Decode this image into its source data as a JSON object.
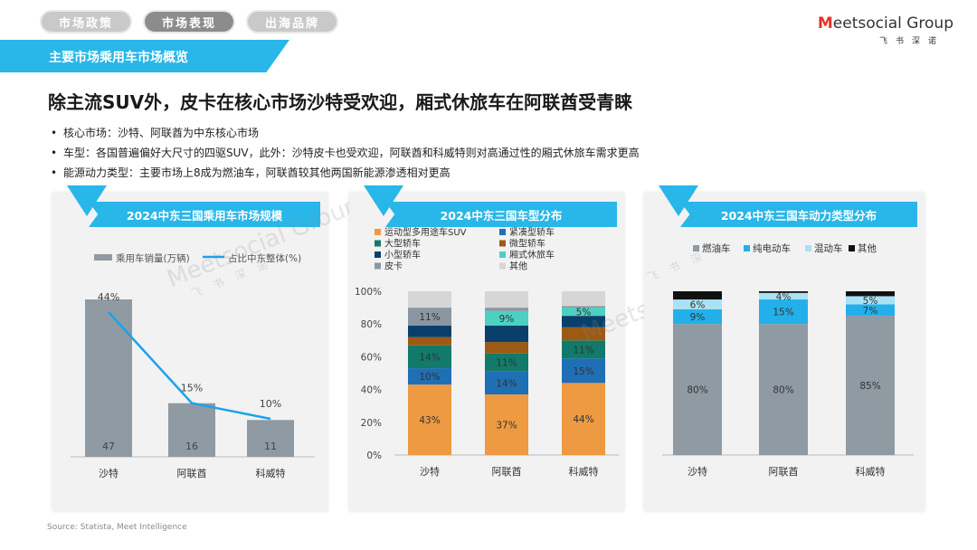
{
  "tabs": [
    {
      "label": "市场政策",
      "active": false
    },
    {
      "label": "市场表现",
      "active": true
    },
    {
      "label": "出海品牌",
      "active": false
    }
  ],
  "logo": {
    "main_m": "M",
    "main_rest": "eetsocial Group",
    "sub": "飞书深诺"
  },
  "section": {
    "title": "主要市场乘用车市场概览"
  },
  "headline": "除主流SUV外，皮卡在核心市场沙特受欢迎，厢式休旅车在阿联酋受青睐",
  "bullets": [
    "核心市场：沙特、阿联酋为中东核心市场",
    "车型：各国普遍偏好大尺寸的四驱SUV，此外：沙特皮卡也受欢迎，阿联酋和科威特则对高通过性的厢式休旅车需求更高",
    "能源动力类型：主要市场上8成为燃油车，阿联酋较其他两国新能源渗透相对更高"
  ],
  "source": "Source: Statista, Meet Intelligence",
  "watermark": {
    "text": "Meetsocial Group",
    "sub": "飞书深诺"
  },
  "colors": {
    "accent": "#29b6e8",
    "bar_gray": "#8f9aa3",
    "line_blue": "#1aa3e8",
    "suv": "#ed9a43",
    "compact": "#1f6fb5",
    "large": "#127a6a",
    "micro": "#9c5a15",
    "small": "#0b3f6b",
    "mpv": "#4cd0c2",
    "pickup": "#8a97a2",
    "other": "#d6d6d6",
    "fuel": "#8f9aa3",
    "ev": "#23b0ea",
    "hybrid": "#a9e2f5",
    "other_power": "#111111"
  },
  "chart_data": [
    {
      "type": "bar",
      "title": "2024中东三国乘用车市场规模",
      "categories": [
        "沙特",
        "阿联酋",
        "科威特"
      ],
      "series": [
        {
          "name": "乘用车销量(万辆)",
          "type": "bar",
          "values": [
            47,
            16,
            11
          ],
          "labels": [
            "47",
            "16",
            "11"
          ]
        },
        {
          "name": "占比中东整体(%)",
          "type": "line",
          "values": [
            44,
            15,
            10
          ],
          "labels": [
            "44%",
            "15%",
            "10%"
          ]
        }
      ]
    },
    {
      "type": "bar",
      "stacked": true,
      "title": "2024中东三国车型分布",
      "categories": [
        "沙特",
        "阿联酋",
        "科威特"
      ],
      "y_ticks": [
        "0%",
        "20%",
        "40%",
        "60%",
        "80%",
        "100%"
      ],
      "ylim": [
        0,
        100
      ],
      "series": [
        {
          "name": "运动型多用途车SUV",
          "color_key": "suv",
          "values": [
            43,
            37,
            44
          ],
          "labels": [
            "43%",
            "37%",
            "44%"
          ]
        },
        {
          "name": "紧凑型轿车",
          "color_key": "compact",
          "values": [
            10,
            14,
            15
          ],
          "labels": [
            "10%",
            "14%",
            "15%"
          ]
        },
        {
          "name": "大型轿车",
          "color_key": "large",
          "values": [
            14,
            11,
            11
          ],
          "labels": [
            "14%",
            "11%",
            "11%"
          ]
        },
        {
          "name": "微型轿车",
          "color_key": "micro",
          "values": [
            5,
            7,
            8
          ],
          "labels": [
            "",
            "",
            ""
          ]
        },
        {
          "name": "小型轿车",
          "color_key": "small",
          "values": [
            7,
            10,
            7
          ],
          "labels": [
            "",
            "",
            ""
          ]
        },
        {
          "name": "厢式休旅车",
          "color_key": "mpv",
          "values": [
            0,
            9,
            5
          ],
          "labels": [
            "",
            "9%",
            "5%"
          ]
        },
        {
          "name": "皮卡",
          "color_key": "pickup",
          "values": [
            11,
            2,
            1
          ],
          "labels": [
            "11%",
            "",
            ""
          ]
        },
        {
          "name": "其他",
          "color_key": "other",
          "values": [
            10,
            10,
            9
          ],
          "labels": [
            "",
            "",
            ""
          ]
        }
      ]
    },
    {
      "type": "bar",
      "stacked": true,
      "title": "2024中东三国车动力类型分布",
      "categories": [
        "沙特",
        "阿联酋",
        "科威特"
      ],
      "ylim": [
        0,
        100
      ],
      "series": [
        {
          "name": "燃油车",
          "color_key": "fuel",
          "values": [
            80,
            80,
            85
          ],
          "labels": [
            "80%",
            "80%",
            "85%"
          ]
        },
        {
          "name": "纯电动车",
          "color_key": "ev",
          "values": [
            9,
            15,
            7
          ],
          "labels": [
            "9%",
            "15%",
            "7%"
          ]
        },
        {
          "name": "混动车",
          "color_key": "hybrid",
          "values": [
            6,
            4,
            5
          ],
          "labels": [
            "6%",
            "4%",
            "5%"
          ]
        },
        {
          "name": "其他",
          "color_key": "other_power",
          "values": [
            5,
            1,
            3
          ],
          "labels": [
            "",
            "",
            ""
          ]
        }
      ]
    }
  ]
}
